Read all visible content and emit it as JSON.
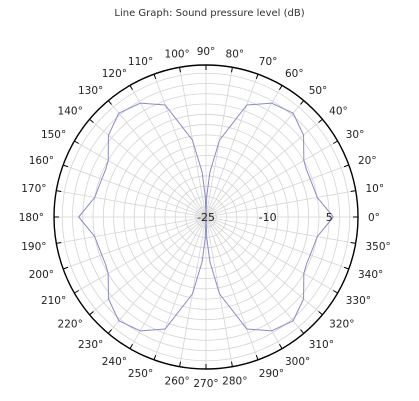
{
  "chart_data": {
    "type": "line",
    "title": "Line Graph: Sound pressure level (dB)",
    "projection": "polar",
    "angle_unit": "degrees",
    "angle_direction": "counterclockwise",
    "zero_angle": "right",
    "angle_ticks": [
      0,
      10,
      20,
      30,
      40,
      50,
      60,
      70,
      80,
      90,
      100,
      110,
      120,
      130,
      140,
      150,
      160,
      170,
      180,
      190,
      200,
      210,
      220,
      230,
      240,
      250,
      260,
      270,
      280,
      290,
      300,
      310,
      320,
      330,
      340,
      350
    ],
    "radial_ticks": [
      -25,
      -10,
      5
    ],
    "rlim": [
      -25,
      12
    ],
    "grid": true,
    "series": [
      {
        "color": "#8a8ac8",
        "theta": [
          0,
          10,
          20,
          25,
          30,
          40,
          50,
          60,
          70,
          80,
          85,
          88,
          90,
          92,
          95,
          100,
          110,
          120,
          130,
          140,
          150,
          155,
          160,
          170,
          180,
          190,
          200,
          205,
          210,
          220,
          230,
          240,
          250,
          260,
          265,
          268,
          270,
          272,
          275,
          280,
          290,
          300,
          310,
          320,
          330,
          335,
          340,
          350,
          360
        ],
        "r": [
          6,
          2.5,
          2,
          2,
          2.5,
          6,
          8,
          7,
          4,
          -6,
          -14,
          -20,
          -25,
          -20,
          -14,
          -6,
          4,
          7,
          8,
          6,
          2.5,
          2,
          2,
          2.5,
          6,
          2.5,
          2,
          2,
          2.5,
          6,
          8,
          7,
          4,
          -6,
          -14,
          -20,
          -25,
          -20,
          -14,
          -6,
          4,
          7,
          8,
          6,
          2.5,
          2,
          2,
          2.5,
          6
        ]
      }
    ]
  }
}
